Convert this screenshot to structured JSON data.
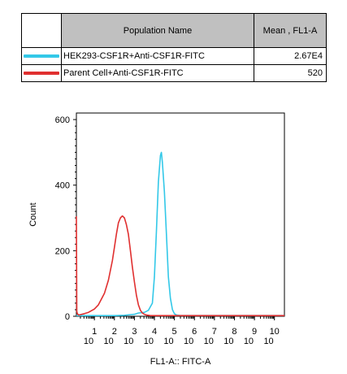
{
  "legend": {
    "header_name": "Population Name",
    "header_mean": "Mean , FL1-A",
    "rows": [
      {
        "name": "HEK293-CSF1R+Anti-CSF1R-FITC",
        "mean": "2.67E4",
        "color": "#33c8e8"
      },
      {
        "name": "Parent Cell+Anti-CSF1R-FITC",
        "mean": "520",
        "color": "#e03030"
      }
    ]
  },
  "chart_data": {
    "type": "line",
    "title": "",
    "xlabel": "FL1-A:: FITC-A",
    "ylabel": "Count",
    "xscale": "log",
    "xlim": [
      0.1,
      10.5
    ],
    "ylim": [
      0,
      620
    ],
    "yticks": [
      0,
      200,
      400,
      600
    ],
    "xticks": [
      {
        "base": "10",
        "exp": "1",
        "pos": 1
      },
      {
        "base": "10",
        "exp": "2",
        "pos": 2
      },
      {
        "base": "10",
        "exp": "3",
        "pos": 3
      },
      {
        "base": "10",
        "exp": "4",
        "pos": 4
      },
      {
        "base": "10",
        "exp": "5",
        "pos": 5
      },
      {
        "base": "10",
        "exp": "6",
        "pos": 6
      },
      {
        "base": "10",
        "exp": "7",
        "pos": 7
      },
      {
        "base": "10",
        "exp": "8",
        "pos": 8
      },
      {
        "base": "10",
        "exp": "9",
        "pos": 9
      },
      {
        "base": "10",
        "exp": "10",
        "pos": 10
      }
    ],
    "series": [
      {
        "name": "HEK293-CSF1R+Anti-CSF1R-FITC",
        "color": "#33c8e8",
        "x": [
          0.1,
          1,
          2,
          2.5,
          2.8,
          3.0,
          3.2,
          3.5,
          3.7,
          3.9,
          4.0,
          4.1,
          4.2,
          4.3,
          4.35,
          4.4,
          4.5,
          4.6,
          4.7,
          4.8,
          4.9,
          5.0,
          5.1,
          5.3,
          6,
          7,
          8,
          9,
          10.5
        ],
        "y": [
          2,
          2,
          2,
          3,
          5,
          6,
          10,
          12,
          18,
          40,
          120,
          260,
          410,
          490,
          500,
          470,
          380,
          250,
          120,
          55,
          20,
          8,
          4,
          2,
          2,
          2,
          2,
          2,
          2
        ]
      },
      {
        "name": "Parent Cell+Anti-CSF1R-FITC",
        "color": "#e03030",
        "x": [
          0.1,
          0.12,
          0.15,
          0.2,
          0.3,
          0.5,
          0.7,
          1.0,
          1.2,
          1.5,
          1.7,
          1.9,
          2.0,
          2.1,
          2.2,
          2.3,
          2.4,
          2.5,
          2.6,
          2.7,
          2.8,
          2.9,
          3.0,
          3.1,
          3.2,
          3.3,
          3.4,
          3.5,
          3.6,
          3.7,
          3.8,
          4.0,
          4.5,
          5,
          6,
          7,
          8,
          10.5
        ],
        "y": [
          305,
          15,
          8,
          4,
          5,
          8,
          12,
          22,
          35,
          70,
          110,
          170,
          210,
          250,
          285,
          300,
          306,
          300,
          280,
          250,
          200,
          150,
          105,
          65,
          35,
          18,
          10,
          6,
          4,
          3,
          2,
          2,
          2,
          2,
          2,
          2,
          2,
          2
        ]
      }
    ]
  }
}
